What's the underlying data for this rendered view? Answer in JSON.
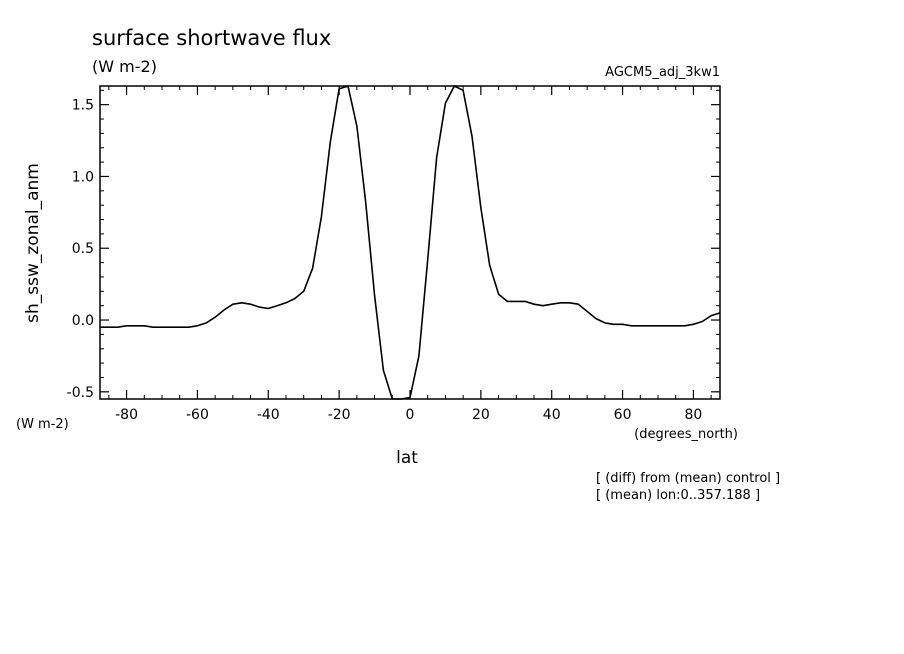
{
  "chart_data": {
    "type": "line",
    "title": "surface shortwave flux",
    "title_units": "(W m-2)",
    "experiment": "AGCM5_adj_3kw1",
    "ylabel": "sh_ssw_zonal_anm",
    "yunits": "(W m-2)",
    "xlabel": "lat",
    "xunits": "(degrees_north)",
    "notes": [
      "[ (diff) from (mean) control ]",
      "[ (mean) lon:0..357.188 ]"
    ],
    "xlim": [
      -87.5,
      87.5
    ],
    "ylim": [
      -0.55,
      1.63
    ],
    "xticks": [
      -80,
      -60,
      -40,
      -20,
      0,
      20,
      40,
      60,
      80
    ],
    "xtick_labels": [
      "-80",
      "-60",
      "-40",
      "-20",
      "0",
      "20",
      "40",
      "60",
      "80"
    ],
    "yticks": [
      -0.5,
      0.0,
      0.5,
      1.0,
      1.5
    ],
    "ytick_labels": [
      "-0.5",
      "0.0",
      "0.5",
      "1.0",
      "1.5"
    ],
    "grid": false,
    "series": [
      {
        "x": [
          -87.5,
          -85,
          -82.5,
          -80,
          -77.5,
          -75,
          -72.5,
          -70,
          -67.5,
          -65,
          -62.5,
          -60,
          -57.5,
          -55,
          -52.5,
          -50,
          -47.5,
          -45,
          -42.5,
          -40,
          -37.5,
          -35,
          -32.5,
          -30,
          -27.5,
          -25,
          -22.5,
          -20,
          -17.5,
          -15,
          -12.5,
          -10,
          -7.5,
          -5,
          -2.5,
          0,
          2.5,
          5,
          7.5,
          10,
          12.5,
          15,
          17.5,
          20,
          22.5,
          25,
          27.5,
          30,
          32.5,
          35,
          37.5,
          40,
          42.5,
          45,
          47.5,
          50,
          52.5,
          55,
          57.5,
          60,
          62.5,
          65,
          67.5,
          70,
          72.5,
          75,
          77.5,
          80,
          82.5,
          85,
          87.5
        ],
        "y": [
          -0.05,
          -0.05,
          -0.05,
          -0.04,
          -0.04,
          -0.04,
          -0.05,
          -0.05,
          -0.05,
          -0.05,
          -0.05,
          -0.04,
          -0.02,
          0.02,
          0.07,
          0.11,
          0.12,
          0.11,
          0.09,
          0.08,
          0.1,
          0.12,
          0.15,
          0.2,
          0.36,
          0.72,
          1.24,
          1.61,
          1.63,
          1.35,
          0.82,
          0.17,
          -0.35,
          -0.55,
          -0.56,
          -0.54,
          -0.25,
          0.42,
          1.13,
          1.51,
          1.63,
          1.6,
          1.28,
          0.78,
          0.38,
          0.18,
          0.13,
          0.13,
          0.13,
          0.11,
          0.1,
          0.11,
          0.12,
          0.12,
          0.11,
          0.06,
          0.01,
          -0.02,
          -0.03,
          -0.03,
          -0.04,
          -0.04,
          -0.04,
          -0.04,
          -0.04,
          -0.04,
          -0.04,
          -0.03,
          -0.01,
          0.03,
          0.05
        ]
      }
    ]
  }
}
